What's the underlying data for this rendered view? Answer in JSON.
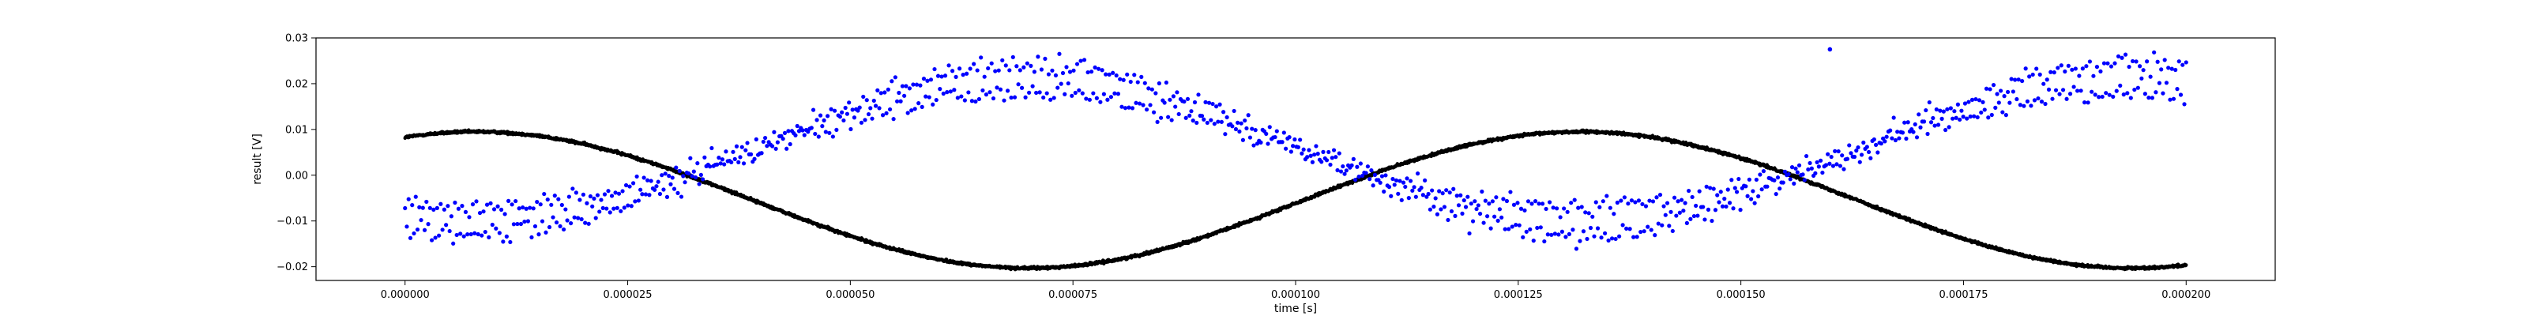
{
  "chart_data": {
    "type": "scatter",
    "title": "",
    "xlabel": "time [s]",
    "ylabel": "result [V]",
    "xlim": [
      -1e-05,
      0.00021
    ],
    "ylim": [
      -0.023,
      0.03
    ],
    "grid": false,
    "legend": "none",
    "x_ticks": [
      0,
      2.5e-05,
      5e-05,
      7.5e-05,
      0.0001,
      0.000125,
      0.00015,
      0.000175,
      0.0002
    ],
    "x_tick_labels": [
      "0.000000",
      "0.000025",
      "0.000050",
      "0.000075",
      "0.000100",
      "0.000125",
      "0.000150",
      "0.000175",
      "0.000200"
    ],
    "y_ticks": [
      -0.02,
      -0.01,
      0.0,
      0.01,
      0.02,
      0.03
    ],
    "y_tick_labels": [
      "−0.02",
      "−0.01",
      "0.00",
      "0.01",
      "0.02",
      "0.03"
    ],
    "series": [
      {
        "color": "#0000ff",
        "marker": "dot",
        "x_range": [
          0,
          0.0002
        ],
        "point_count": 1000,
        "model": "scattered ~sinusoidal band, amplitude about 0.018 V, minimum near 0.00001 s, maximum near 0.00007 s, minimum near 0.000125 s, rising toward 0.0002 s; two interleaved tracks separated by about 0.006 V",
        "outlier": {
          "x": 0.00016,
          "y": 0.0275
        }
      },
      {
        "color": "#000000",
        "marker": "dot",
        "x_range": [
          0,
          0.0002
        ],
        "point_count": 4000,
        "model": "smooth sinusoid, maximum 0.0095 V near 0.000008 s and 0.00013 s, minimum -0.0203 V near 0.00007 s and 0.000195 s"
      }
    ]
  }
}
